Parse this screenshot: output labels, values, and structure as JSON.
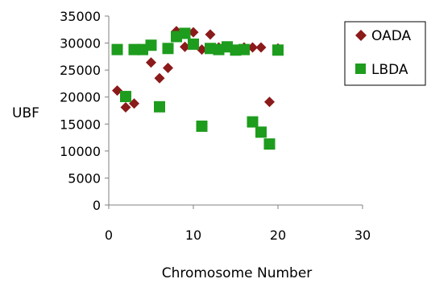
{
  "chart_data": {
    "type": "scatter",
    "xlabel": "Chromosome Number",
    "ylabel": "UBF",
    "xlim": [
      0,
      30
    ],
    "ylim": [
      0,
      35000
    ],
    "xticks": [
      "0",
      "10",
      "20",
      "30"
    ],
    "yticks": [
      "0",
      "5000",
      "10000",
      "15000",
      "20000",
      "25000",
      "30000",
      "35000"
    ],
    "grid": false,
    "legend_position": "top-right",
    "series": [
      {
        "name": "OADA",
        "marker": "diamond",
        "color": "#8b1a1a",
        "points": [
          [
            1,
            21200
          ],
          [
            2,
            18100
          ],
          [
            3,
            18800
          ],
          [
            5,
            26400
          ],
          [
            6,
            23500
          ],
          [
            7,
            25400
          ],
          [
            8,
            32200
          ],
          [
            9,
            29300
          ],
          [
            10,
            32000
          ],
          [
            11,
            28800
          ],
          [
            12,
            31600
          ],
          [
            13,
            29200
          ],
          [
            15,
            28700
          ],
          [
            16,
            29200
          ],
          [
            17,
            29200
          ],
          [
            18,
            29200
          ],
          [
            19,
            19100
          ],
          [
            20,
            29000
          ]
        ]
      },
      {
        "name": "LBDA",
        "marker": "square",
        "color": "#1e9c1e",
        "points": [
          [
            1,
            28800
          ],
          [
            2,
            20100
          ],
          [
            3,
            28800
          ],
          [
            4,
            28800
          ],
          [
            5,
            29600
          ],
          [
            6,
            18200
          ],
          [
            7,
            29000
          ],
          [
            8,
            31200
          ],
          [
            9,
            31800
          ],
          [
            10,
            29800
          ],
          [
            11,
            14600
          ],
          [
            12,
            29000
          ],
          [
            13,
            28800
          ],
          [
            14,
            29300
          ],
          [
            15,
            28700
          ],
          [
            16,
            28800
          ],
          [
            17,
            15400
          ],
          [
            18,
            13500
          ],
          [
            19,
            11300
          ],
          [
            20,
            28700
          ]
        ]
      }
    ]
  }
}
